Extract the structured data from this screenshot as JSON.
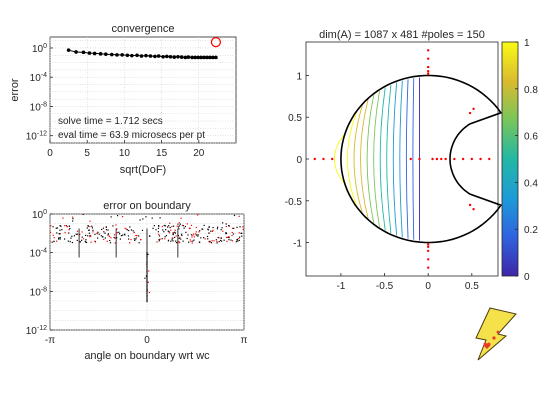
{
  "chart_data": [
    {
      "id": "convergence",
      "type": "scatter",
      "title": "convergence",
      "xlabel": "sqrt(DoF)",
      "ylabel": "error",
      "xlim": [
        0,
        25
      ],
      "ylim_exp": [
        -13,
        1.5
      ],
      "log_y": true,
      "grid": true,
      "x_ticks": [
        "0",
        "5",
        "10",
        "15",
        "20"
      ],
      "x_tick_values": [
        0,
        5,
        10,
        15,
        20
      ],
      "y_ticks": [
        "10^0",
        "10^-4",
        "10^-8",
        "10^-12"
      ],
      "y_tick_exps": [
        0,
        -4,
        -8,
        -12
      ],
      "series": [
        {
          "marker": "dot-line",
          "x": [
            2.5,
            3.5,
            4.5,
            5.3,
            6.0,
            6.8,
            7.5,
            8.3,
            9.0,
            9.7,
            10.4,
            11.0,
            11.7,
            12.3,
            12.9,
            13.5,
            14.1,
            14.6,
            15.2,
            15.7,
            16.2,
            16.7,
            17.2,
            17.7,
            18.2,
            18.6,
            19.1,
            19.5,
            19.9,
            20.3,
            20.7,
            21.1,
            21.5,
            21.9,
            22.3
          ],
          "y_exp": [
            -0.3,
            -0.55,
            -0.6,
            -0.7,
            -0.75,
            -0.8,
            -0.85,
            -0.9,
            -0.95,
            -0.95,
            -1.0,
            -1.05,
            -1.0,
            -1.1,
            -1.05,
            -1.1,
            -1.15,
            -1.1,
            -1.2,
            -1.15,
            -1.2,
            -1.25,
            -1.2,
            -1.25,
            -1.3,
            -1.25,
            -1.3,
            -1.3,
            -1.3,
            -1.3,
            -1.3,
            -1.3,
            -1.3,
            -1.3,
            -1.3
          ]
        },
        {
          "marker": "red-circle",
          "x": [
            22.3
          ],
          "y_exp": [
            0.8
          ]
        }
      ],
      "annotations": [
        "solve time =  1.712 secs",
        "eval time = 63.9 microsecs per pt"
      ]
    },
    {
      "id": "boundary",
      "type": "scatter",
      "title": "error on boundary",
      "xlabel": "angle on boundary wrt wc",
      "ylim_exp": [
        -12,
        0
      ],
      "log_y": true,
      "grid": true,
      "x_ticks": [
        "-π",
        "0",
        "π"
      ],
      "y_ticks": [
        "10^0",
        "10^-4",
        "10^-8",
        "10^-12"
      ],
      "y_tick_exps": [
        0,
        -4,
        -8,
        -12
      ],
      "series_colors": [
        "#000000",
        "#ff0000"
      ]
    },
    {
      "id": "domain",
      "type": "contour",
      "title": "dim(A) = 1087 x 481  #poles = 150",
      "xlim": [
        -1.4,
        0.8
      ],
      "ylim": [
        -1.4,
        1.4
      ],
      "x_ticks": [
        "-1",
        "-0.5",
        "0",
        "0.5"
      ],
      "x_tick_values": [
        -1,
        -0.5,
        0,
        0.5
      ],
      "y_ticks": [
        "1",
        "0.5",
        "0",
        "-0.5",
        "-1"
      ],
      "y_tick_values": [
        1,
        0.5,
        0,
        -0.5,
        -1
      ],
      "colorbar_ticks": [
        "1",
        "0.8",
        "0.6",
        "0.4",
        "0.2",
        "0"
      ],
      "colorbar_values": [
        1,
        0.8,
        0.6,
        0.4,
        0.2,
        0
      ],
      "colormap": [
        "#3e26a8",
        "#2f64e0",
        "#1e9ad8",
        "#22b8a4",
        "#7ac65a",
        "#d8ba2e",
        "#f9fb15"
      ]
    }
  ],
  "logo": {
    "colors": [
      "#f5e24a",
      "#e83a2a"
    ]
  }
}
